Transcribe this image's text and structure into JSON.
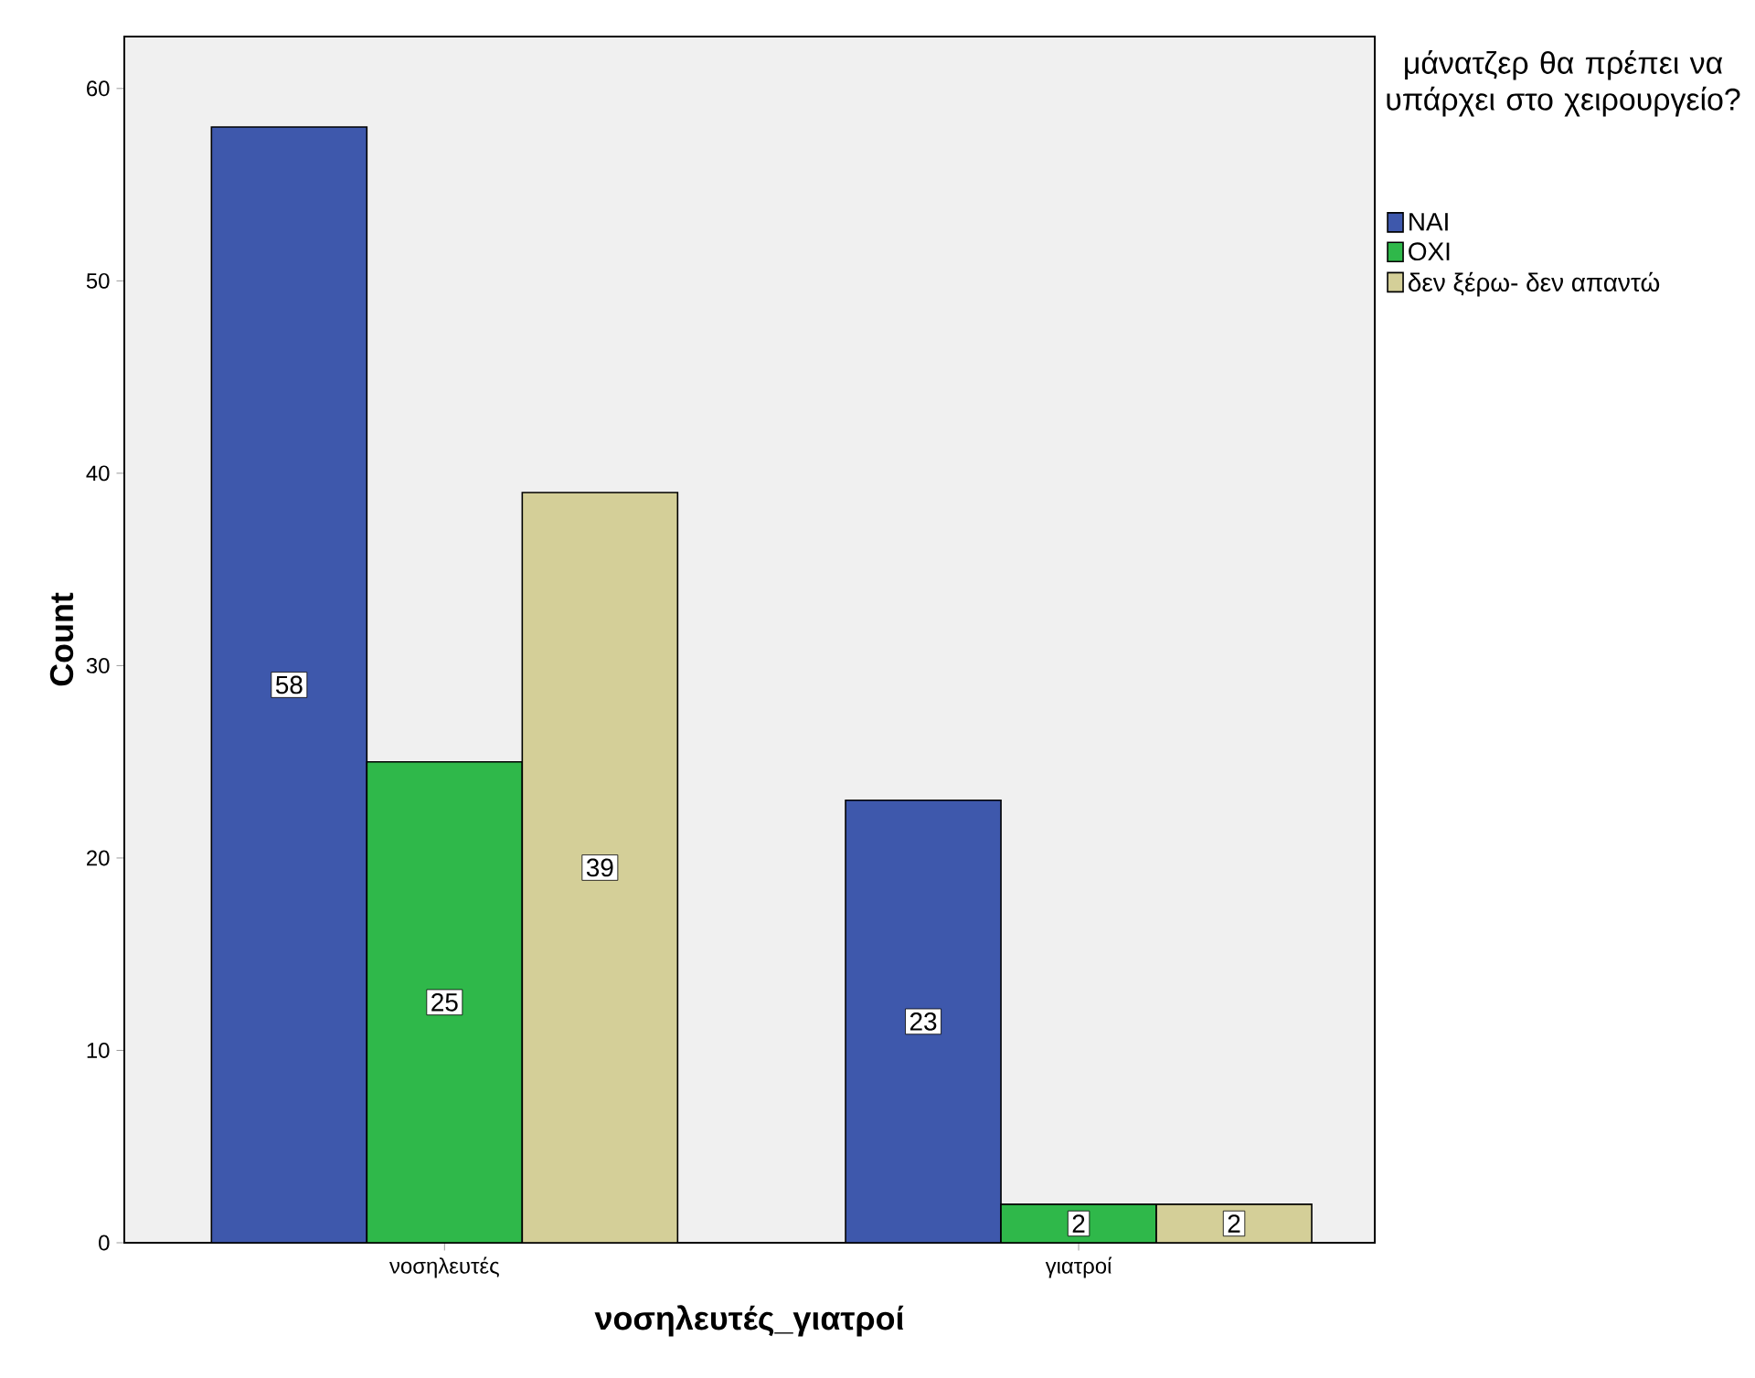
{
  "chart_data": {
    "type": "bar",
    "xlabel": "νοσηλευτές_γιατροί",
    "ylabel": "Count",
    "legend_title": "μάνατζερ θα πρέπει να υπάρχει στο χειρουργείο?",
    "categories": [
      "νοσηλευτές",
      "γιατροί"
    ],
    "series": [
      {
        "name": "ΝΑΙ",
        "color": "#3e58ac",
        "values": [
          58,
          23
        ]
      },
      {
        "name": "ΟΧΙ",
        "color": "#2fb84a",
        "values": [
          25,
          2
        ]
      },
      {
        "name": "δεν ξέρω- δεν απαντώ",
        "color": "#d4cf98",
        "values": [
          39,
          2
        ]
      }
    ],
    "ylim": [
      0,
      62.7
    ],
    "yticks": [
      0,
      10,
      20,
      30,
      40,
      50,
      60
    ],
    "data_labels": true,
    "legend": "right",
    "grid": false
  }
}
